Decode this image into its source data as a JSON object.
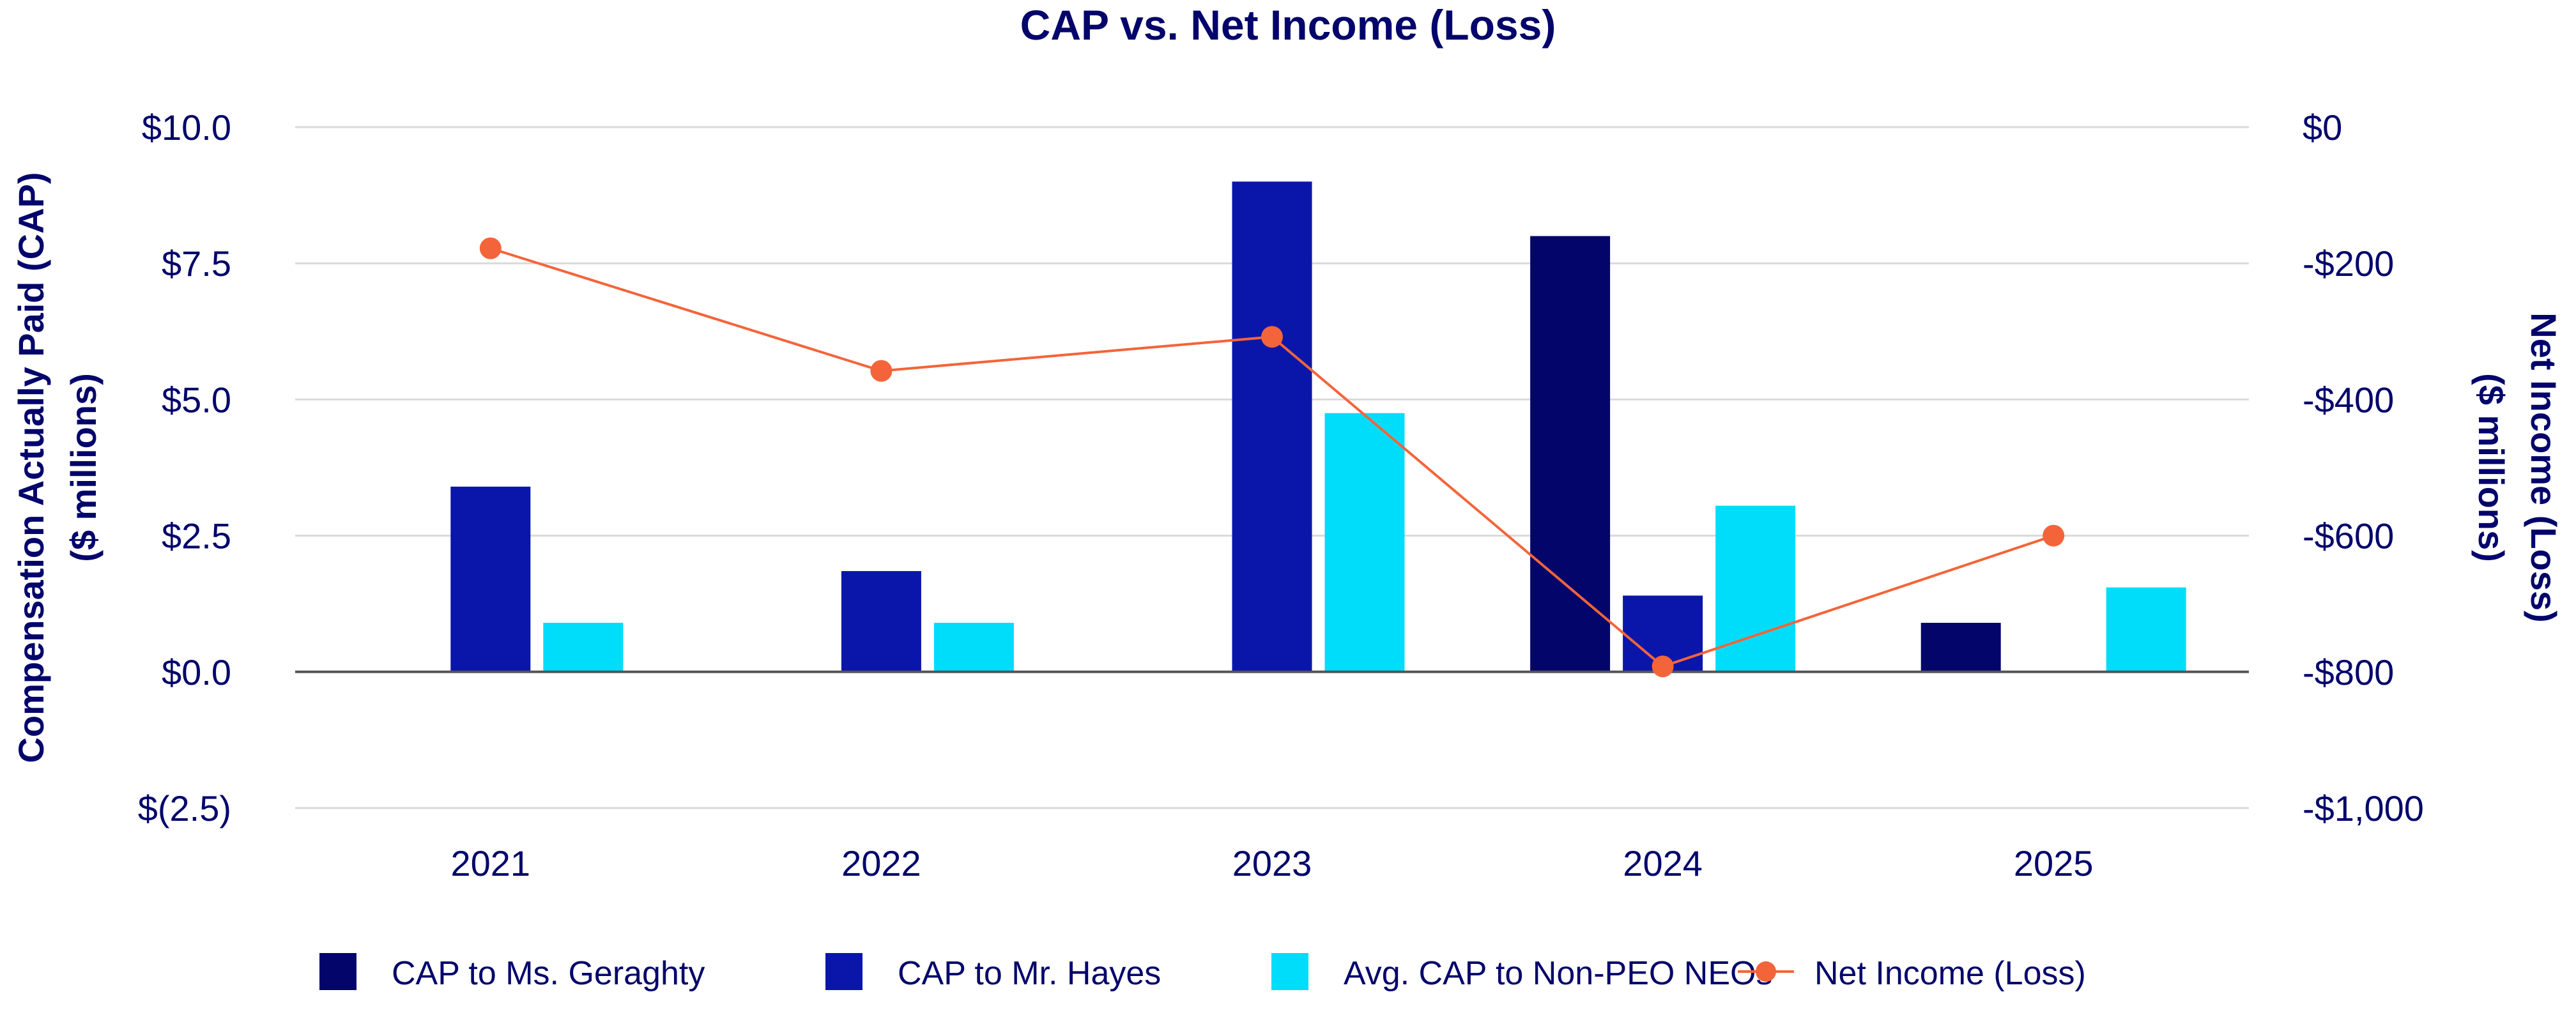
{
  "chart_data": {
    "type": "bar",
    "title": "CAP vs. Net Income (Loss)",
    "categories": [
      "2021",
      "2022",
      "2023",
      "2024",
      "2025"
    ],
    "y_left": {
      "label_lines": [
        "Compensation Actually Paid (CAP)",
        "($ millions)"
      ],
      "ylim": [
        -2.5,
        10.0
      ],
      "ticks": [
        10.0,
        7.5,
        5.0,
        2.5,
        0.0,
        -2.5
      ],
      "tick_labels": [
        "$10.0",
        "$7.5",
        "$5.0",
        "$2.5",
        "$0.0",
        "$(2.5)"
      ]
    },
    "y_right": {
      "label_lines": [
        "Net Income (Loss)",
        "($ millions)"
      ],
      "ylim": [
        -1000,
        0
      ],
      "ticks": [
        0,
        -200,
        -400,
        -600,
        -800,
        -1000
      ],
      "tick_labels": [
        "$0",
        "-$200",
        "-$400",
        "-$600",
        "-$800",
        "-$1,000"
      ]
    },
    "series": [
      {
        "name": "CAP to Ms. Geraghty",
        "type": "bar",
        "axis": "left",
        "color": "#03056B",
        "values": [
          null,
          null,
          null,
          8.0,
          0.9
        ]
      },
      {
        "name": "CAP to Mr. Hayes",
        "type": "bar",
        "axis": "left",
        "color": "#0A16AA",
        "values": [
          3.4,
          1.85,
          9.0,
          1.4,
          null
        ]
      },
      {
        "name": "Avg. CAP to Non-PEO NEOs",
        "type": "bar",
        "axis": "left",
        "color": "#00DDFB",
        "values": [
          0.9,
          0.9,
          4.75,
          3.05,
          1.55
        ]
      },
      {
        "name": "Net Income (Loss)",
        "type": "line",
        "axis": "right",
        "color": "#F4643A",
        "values": [
          -178,
          -358,
          -308,
          -792,
          -600
        ]
      }
    ],
    "grid": true,
    "legend_position": "bottom"
  }
}
